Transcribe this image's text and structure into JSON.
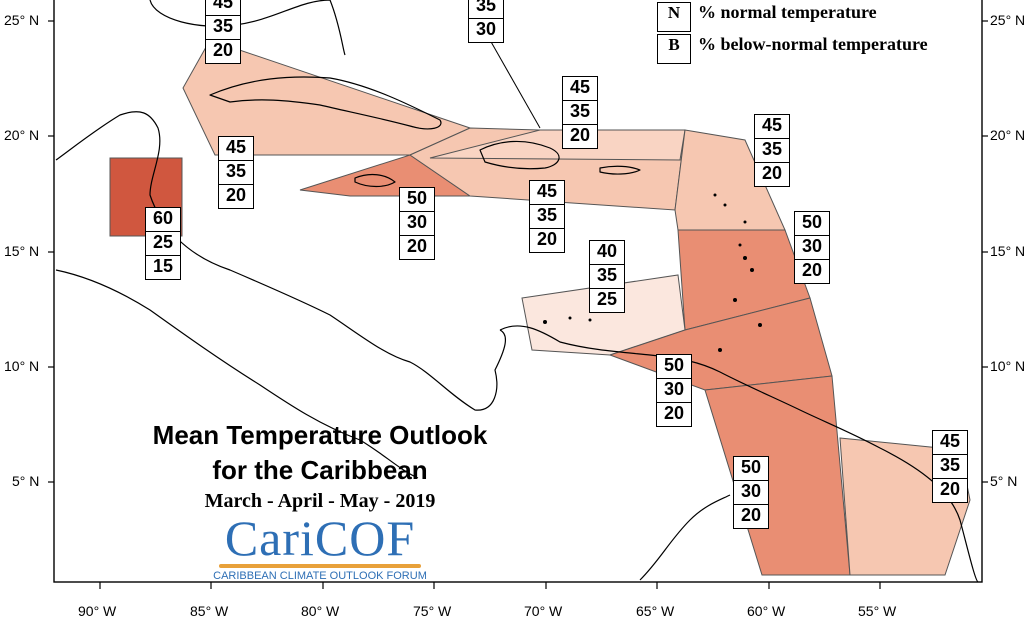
{
  "title": {
    "line1": "Mean Temperature Outlook",
    "line2": "for the Caribbean",
    "season": "March - April - May - 2019"
  },
  "logo": {
    "name": "CariCOF",
    "subtitle": "CARIBBEAN CLIMATE OUTLOOK FORUM"
  },
  "legend": [
    {
      "key": "N",
      "text": "% normal temperature"
    },
    {
      "key": "B",
      "text": "% below-normal temperature"
    }
  ],
  "colors": {
    "p60": "#d0573f",
    "p50": "#e98e73",
    "p45": "#f6c7b1",
    "p40": "#fbe7de",
    "p45_alt": "#f9d4c3"
  },
  "axes": {
    "lon_ticks": [
      "90° W",
      "85° W",
      "80° W",
      "75° W",
      "70° W",
      "65° W",
      "60° W",
      "55° W"
    ],
    "lat_ticks": [
      "25° N",
      "20° N",
      "15° N",
      "10° N",
      "5° N"
    ]
  },
  "probability_boxes": [
    {
      "region": "bahamas-west",
      "values": [
        "45",
        "35",
        "20"
      ]
    },
    {
      "region": "bahamas-east",
      "values": [
        "35",
        "30"
      ]
    },
    {
      "region": "cuba-gulf",
      "values": [
        "45",
        "35",
        "20"
      ]
    },
    {
      "region": "belize",
      "values": [
        "60",
        "25",
        "15"
      ]
    },
    {
      "region": "jamaica",
      "values": [
        "50",
        "30",
        "20"
      ]
    },
    {
      "region": "hispaniola",
      "values": [
        "45",
        "35",
        "20"
      ]
    },
    {
      "region": "turks-caicos",
      "values": [
        "45",
        "35",
        "20"
      ]
    },
    {
      "region": "leeward-islands",
      "values": [
        "45",
        "35",
        "20"
      ]
    },
    {
      "region": "windward-islands",
      "values": [
        "50",
        "30",
        "20"
      ]
    },
    {
      "region": "abc-islands",
      "values": [
        "40",
        "35",
        "25"
      ]
    },
    {
      "region": "trinidad-tobago",
      "values": [
        "50",
        "30",
        "20"
      ]
    },
    {
      "region": "guyana",
      "values": [
        "50",
        "30",
        "20"
      ]
    },
    {
      "region": "suriname-guiana",
      "values": [
        "45",
        "35",
        "20"
      ]
    }
  ]
}
